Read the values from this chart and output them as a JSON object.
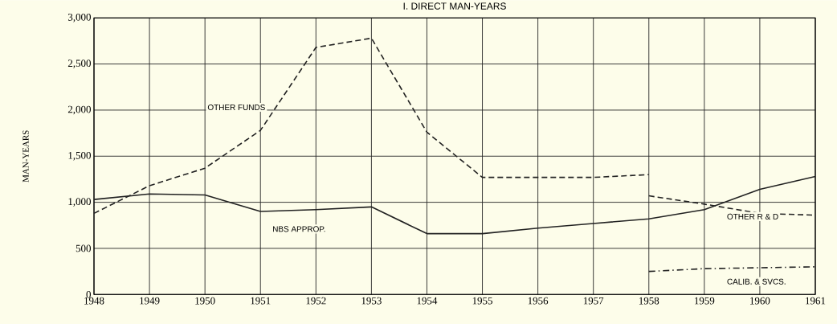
{
  "chart_data": {
    "type": "line",
    "title": "I. DIRECT MAN-YEARS",
    "ylabel": "MAN-YEARS",
    "x": [
      1948,
      1949,
      1950,
      1951,
      1952,
      1953,
      1954,
      1955,
      1956,
      1957,
      1958,
      1959,
      1960,
      1961
    ],
    "series": [
      {
        "name": "OTHER FUNDS",
        "color": "#222222",
        "line_style": "dashed",
        "values": [
          880,
          1180,
          1370,
          1780,
          2680,
          2780,
          1760,
          1270,
          1270,
          1270,
          1300,
          null,
          null,
          null
        ]
      },
      {
        "name": "NBS APPROP.",
        "color": "#222222",
        "line_style": "solid",
        "values": [
          1030,
          1090,
          1080,
          900,
          920,
          950,
          660,
          660,
          720,
          770,
          820,
          920,
          1140,
          1280
        ]
      },
      {
        "name": "OTHER R & D",
        "color": "#222222",
        "line_style": "dashed",
        "values": [
          null,
          null,
          null,
          null,
          null,
          null,
          null,
          null,
          null,
          null,
          1070,
          980,
          880,
          860
        ]
      },
      {
        "name": "CALIB. & SVCS.",
        "color": "#222222",
        "line_style": "dashdot",
        "values": [
          null,
          null,
          null,
          null,
          null,
          null,
          null,
          null,
          null,
          null,
          250,
          280,
          290,
          300
        ]
      }
    ],
    "xlim": [
      1948,
      1961
    ],
    "xticks": [
      1948,
      1949,
      1950,
      1951,
      1952,
      1953,
      1954,
      1955,
      1956,
      1957,
      1958,
      1959,
      1960,
      1961
    ],
    "ylim": [
      0,
      3000
    ],
    "yticks": [
      0,
      500,
      {
        "value": 1000,
        "label": "1,000"
      },
      {
        "value": 1500,
        "label": "1,500"
      },
      {
        "value": 2000,
        "label": "2,000"
      },
      {
        "value": 2500,
        "label": "2,500"
      },
      {
        "value": 3000,
        "label": "3,000"
      }
    ],
    "grid": true,
    "marker": "none"
  }
}
